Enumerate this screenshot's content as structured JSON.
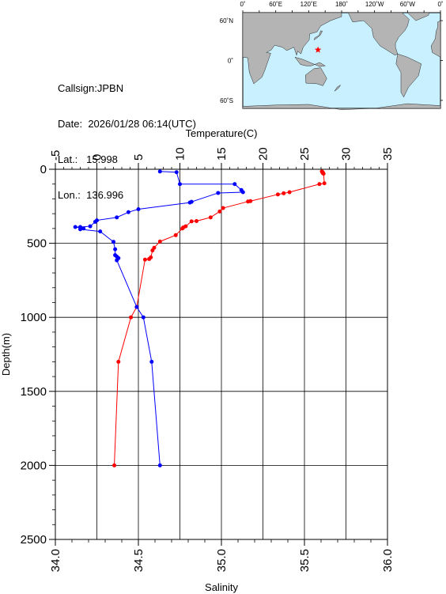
{
  "station": {
    "callsign_label": "Callsign:",
    "callsign": "JPBN",
    "date_label": "Date:",
    "date": "2026/01/28 06:14(UTC)",
    "lat_label": "Lat.:",
    "lat": "15.998",
    "lon_label": "Lon.:",
    "lon": "136.996"
  },
  "map": {
    "lon_labels": [
      "0˚",
      "60˚E",
      "120˚E",
      "180˚",
      "120˚W",
      "60˚W",
      "0˚"
    ],
    "lat_labels": [
      "60˚N",
      "0˚",
      "60˚S"
    ],
    "ocean_color": "#c8f0ff",
    "land_color": "#b4b4b4",
    "marker_icon": "star-icon",
    "marker_color": "#ff0000"
  },
  "chart_data": {
    "type": "line",
    "ylabel": "Depth(m)",
    "ylim": [
      0,
      2500
    ],
    "y_ticks": [
      0,
      500,
      1000,
      1500,
      2000,
      2500
    ],
    "y_inverted": true,
    "grid": true,
    "temperature_axis": {
      "label": "Temperature(C)",
      "position": "top",
      "lim": [
        -5,
        35
      ],
      "ticks": [
        -5,
        0,
        5,
        10,
        15,
        20,
        25,
        30,
        35
      ]
    },
    "salinity_axis": {
      "label": "Salinity",
      "position": "bottom",
      "lim": [
        34.0,
        36.0
      ],
      "ticks": [
        "34.0",
        "34.5",
        "35.0",
        "35.5",
        "36.0"
      ]
    },
    "series": [
      {
        "axis": "temperature",
        "color": "#ff0000",
        "points": [
          [
            27.1,
            15
          ],
          [
            27.2,
            20
          ],
          [
            27.2,
            25
          ],
          [
            27.3,
            30
          ],
          [
            27.4,
            95
          ],
          [
            26.8,
            100
          ],
          [
            23.2,
            155
          ],
          [
            22.5,
            162
          ],
          [
            21.8,
            170
          ],
          [
            18.5,
            215
          ],
          [
            18.2,
            218
          ],
          [
            15.2,
            262
          ],
          [
            14.8,
            285
          ],
          [
            13.7,
            325
          ],
          [
            12.0,
            350
          ],
          [
            11.4,
            352
          ],
          [
            10.7,
            385
          ],
          [
            10.4,
            393
          ],
          [
            10.3,
            400
          ],
          [
            9.5,
            445
          ],
          [
            7.6,
            488
          ],
          [
            6.9,
            530
          ],
          [
            6.7,
            548
          ],
          [
            6.5,
            595
          ],
          [
            6.3,
            606
          ],
          [
            5.8,
            610
          ],
          [
            4.8,
            930
          ],
          [
            4.1,
            1000
          ],
          [
            2.6,
            1300
          ],
          [
            2.1,
            2000
          ]
        ]
      },
      {
        "axis": "salinity",
        "color": "#0000ff",
        "points": [
          [
            34.63,
            15
          ],
          [
            34.73,
            20
          ],
          [
            34.75,
            100
          ],
          [
            35.08,
            100
          ],
          [
            35.12,
            140
          ],
          [
            35.13,
            155
          ],
          [
            34.98,
            160
          ],
          [
            34.82,
            220
          ],
          [
            34.81,
            225
          ],
          [
            34.5,
            270
          ],
          [
            34.44,
            290
          ],
          [
            34.37,
            325
          ],
          [
            34.25,
            345
          ],
          [
            34.24,
            355
          ],
          [
            34.21,
            385
          ],
          [
            34.15,
            390
          ],
          [
            34.12,
            390
          ],
          [
            34.17,
            400
          ],
          [
            34.15,
            405
          ],
          [
            34.27,
            420
          ],
          [
            34.35,
            490
          ],
          [
            34.36,
            540
          ],
          [
            34.36,
            580
          ],
          [
            34.37,
            590
          ],
          [
            34.38,
            600
          ],
          [
            34.37,
            615
          ],
          [
            34.49,
            930
          ],
          [
            34.53,
            1000
          ],
          [
            34.58,
            1300
          ],
          [
            34.63,
            2000
          ]
        ]
      }
    ]
  }
}
